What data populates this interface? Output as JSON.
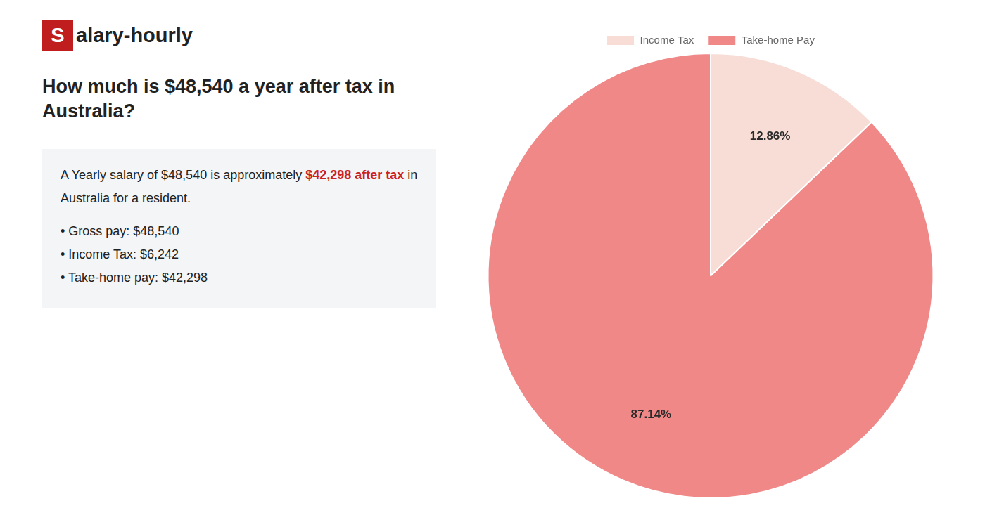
{
  "chart_data": {
    "type": "pie",
    "title": [
      "How much is $48,540 a year after tax in",
      "Australia?"
    ],
    "annotations": [
      [
        {
          "text": "S",
          "box_color": "#c01e1e"
        },
        {
          "text": "alary-hourly"
        }
      ],
      [
        {
          "text": "A Yearly salary of $48,540 is approximately "
        },
        {
          "text": "$42,298 after tax",
          "color": "#cc2222"
        },
        {
          "text": " in"
        }
      ],
      [
        {
          "text": "Australia for a resident."
        }
      ],
      [
        {
          "text": "• Gross pay: $48,540"
        }
      ],
      [
        {
          "text": "• Income Tax: $6,242"
        }
      ],
      [
        {
          "text": "• Take-home pay: $42,298"
        }
      ]
    ],
    "categories": [
      "Income Tax",
      "Take-home Pay"
    ],
    "values": [
      12.86,
      87.14
    ],
    "value_labels": [
      "12.86%",
      "87.14%"
    ],
    "colors": [
      "#f7ddd5",
      "#f08888"
    ],
    "data_labels": true,
    "legend": "top"
  }
}
